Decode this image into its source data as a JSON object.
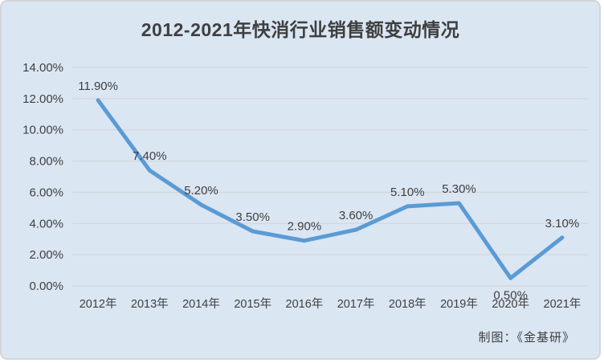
{
  "title": "2012-2021年快消行业销售额变动情况",
  "credit": "制图：《金基研》",
  "colors": {
    "background": "#dbe6f3",
    "border": "#d3d5d8",
    "line": "#5b9bd5",
    "grid": "#d3d7db",
    "text": "#404040"
  },
  "chart_data": {
    "type": "line",
    "title": "2012-2021年快消行业销售额变动情况",
    "categories": [
      "2012年",
      "2013年",
      "2014年",
      "2015年",
      "2016年",
      "2017年",
      "2018年",
      "2019年",
      "2020年",
      "2021年"
    ],
    "values": [
      11.9,
      7.4,
      5.2,
      3.5,
      2.9,
      3.6,
      5.1,
      5.3,
      0.5,
      3.1
    ],
    "data_labels": [
      "11.90%",
      "7.40%",
      "5.20%",
      "3.50%",
      "2.90%",
      "3.60%",
      "5.10%",
      "5.30%",
      "0.50%",
      "3.10%"
    ],
    "y_ticks": [
      {
        "value": 14,
        "label": "14.00%"
      },
      {
        "value": 12,
        "label": "12.00%"
      },
      {
        "value": 10,
        "label": "10.00%"
      },
      {
        "value": 8,
        "label": "8.00%"
      },
      {
        "value": 6,
        "label": "6.00%"
      },
      {
        "value": 4,
        "label": "4.00%"
      },
      {
        "value": 2,
        "label": "2.00%"
      },
      {
        "value": 0,
        "label": "0.00%"
      }
    ],
    "ylim": [
      0,
      14
    ],
    "grid": true,
    "legend": "none",
    "label_below_indices": [
      8
    ]
  }
}
